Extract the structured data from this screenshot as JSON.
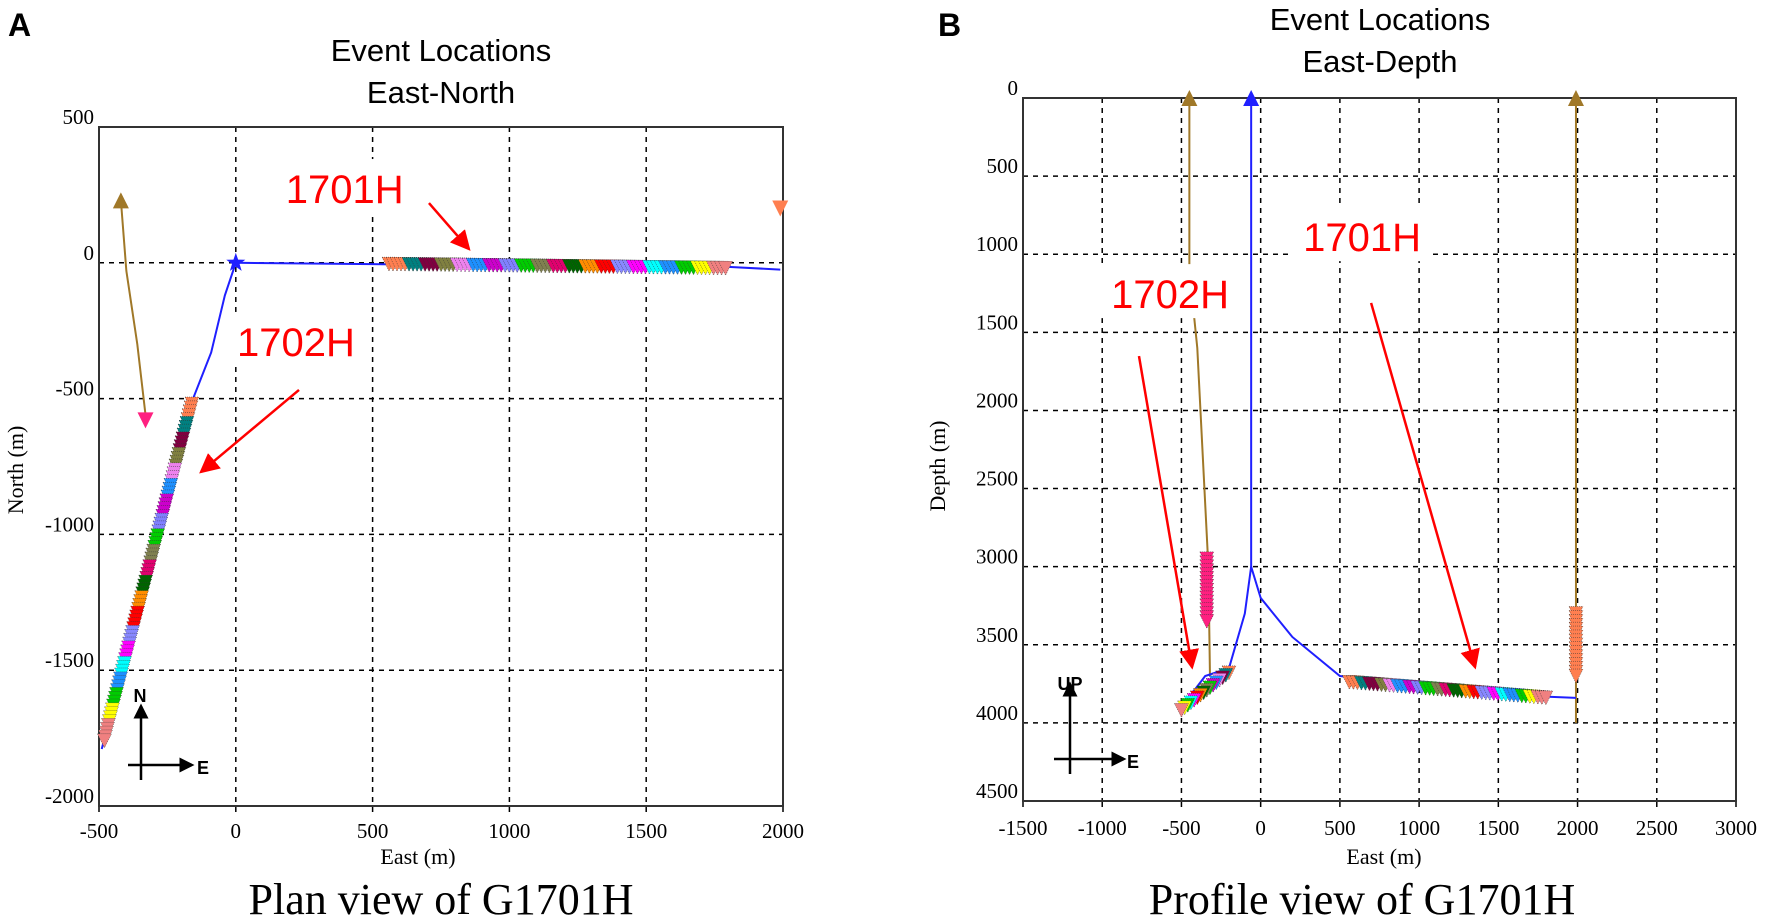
{
  "colors": {
    "grid": "#000000",
    "well_trajectory": "#1f1fff",
    "observation_well": "#a07828",
    "annotation": "#ff0000",
    "stage_palette": [
      "#ff7f50",
      "#008080",
      "#800040",
      "#808040",
      "#ee82ee",
      "#1e90ff",
      "#cc00cc",
      "#8080ff",
      "#00cc00",
      "#808050",
      "#e0006e",
      "#006400",
      "#ff8c00",
      "#ff0000",
      "#8888ff",
      "#ff00ff",
      "#00ffff",
      "#1e90ff",
      "#00cc00",
      "#ffff00",
      "#f08080"
    ]
  },
  "chart_data": [
    {
      "panel_label": "A",
      "type": "scatter",
      "title": [
        "Event Locations",
        "East-North"
      ],
      "xlabel": "East (m)",
      "ylabel": "North (m)",
      "caption": "Plan view of G1701H",
      "xlim": [
        -500,
        2000
      ],
      "ylim": [
        -2000,
        500
      ],
      "y_inverted": false,
      "xticks": [
        -500,
        0,
        500,
        1000,
        1500,
        2000
      ],
      "xtick_labels": [
        "-500",
        "0",
        "500",
        "1000",
        "1500",
        "2000"
      ],
      "yticks": [
        500,
        0,
        -500,
        -1000,
        -1500,
        -2000
      ],
      "ytick_labels": [
        "500",
        "0",
        "-500",
        "-1000",
        "-1500",
        "-2000"
      ],
      "grid": true,
      "compass": [
        "N",
        "E"
      ],
      "lines": [
        {
          "well": "observation",
          "points": [
            [
              -420,
              230
            ],
            [
              -400,
              -30
            ],
            [
              -360,
              -300
            ],
            [
              -330,
              -560
            ]
          ]
        },
        {
          "well": "1702H",
          "points": [
            [
              0,
              0
            ],
            [
              -40,
              -120
            ],
            [
              -90,
              -330
            ],
            [
              -160,
              -510
            ],
            [
              -490,
              -1790
            ]
          ]
        },
        {
          "well": "1701H",
          "points": [
            [
              0,
              0
            ],
            [
              500,
              -5
            ],
            [
              1000,
              -8
            ],
            [
              1800,
              -15
            ],
            [
              1990,
              -25
            ]
          ]
        }
      ],
      "markers": [
        {
          "shape": "triangle-up",
          "at": [
            -420,
            230
          ],
          "color": "#a07828"
        },
        {
          "shape": "triangle-down",
          "at": [
            -330,
            -580
          ],
          "color": "#ff2080"
        },
        {
          "shape": "star",
          "at": [
            0,
            0
          ],
          "color": "#1f1fff"
        },
        {
          "shape": "triangle-down",
          "at": [
            1990,
            200
          ],
          "color": "#ff7f50"
        }
      ],
      "event_groups": [
        {
          "well": "1701H",
          "from": [
            560,
            -5
          ],
          "to": [
            1790,
            -20
          ]
        },
        {
          "well": "1702H",
          "from": [
            -160,
            -520
          ],
          "to": [
            -480,
            -1760
          ]
        }
      ],
      "annotations": [
        {
          "text": "1701H",
          "at": [
            398,
            220
          ],
          "arrow_from": [
            706,
            220
          ],
          "arrow_to": [
            852,
            51
          ]
        },
        {
          "text": "1702H",
          "at": [
            220,
            -343
          ],
          "arrow_from": [
            231,
            -468
          ],
          "arrow_to": [
            -127,
            -770
          ]
        }
      ]
    },
    {
      "panel_label": "B",
      "type": "scatter",
      "title": [
        "Event Locations",
        "East-Depth"
      ],
      "xlabel": "East (m)",
      "ylabel": "Depth (m)",
      "caption": "Profile view of G1701H",
      "xlim": [
        -1500,
        3000
      ],
      "ylim": [
        0,
        4500
      ],
      "y_inverted": true,
      "xticks": [
        -1500,
        -1000,
        -500,
        0,
        500,
        1000,
        1500,
        2000,
        2500,
        3000
      ],
      "xtick_labels": [
        "-1500",
        "-1000",
        "-500",
        "0",
        "500",
        "1000",
        "1500",
        "2000",
        "2500",
        "3000"
      ],
      "yticks": [
        0,
        500,
        1000,
        1500,
        2000,
        2500,
        3000,
        3500,
        4000,
        4500
      ],
      "ytick_labels": [
        "0",
        "500",
        "1000",
        "1500",
        "2000",
        "2500",
        "3000",
        "3500",
        "4000",
        "4500"
      ],
      "grid": true,
      "compass": [
        "UP",
        "E"
      ],
      "lines": [
        {
          "well": "observation",
          "points": [
            [
              -450,
              0
            ],
            [
              -450,
              1100
            ],
            [
              -400,
              1600
            ],
            [
              -330,
              3000
            ],
            [
              -320,
              3700
            ]
          ]
        },
        {
          "well": "observation",
          "points": [
            [
              1990,
              0
            ],
            [
              1990,
              4000
            ]
          ]
        },
        {
          "well": "1701H",
          "points": [
            [
              -60,
              0
            ],
            [
              -60,
              3000
            ],
            [
              0,
              3200
            ],
            [
              200,
              3450
            ],
            [
              500,
              3700
            ],
            [
              1000,
              3760
            ],
            [
              1500,
              3820
            ],
            [
              1990,
              3840
            ]
          ]
        },
        {
          "well": "1702H",
          "points": [
            [
              -60,
              3000
            ],
            [
              -100,
              3300
            ],
            [
              -200,
              3650
            ],
            [
              -350,
              3700
            ],
            [
              -500,
              3900
            ]
          ]
        }
      ],
      "markers": [
        {
          "shape": "triangle-up",
          "at": [
            -450,
            0
          ],
          "color": "#a07828"
        },
        {
          "shape": "triangle-up",
          "at": [
            -60,
            0
          ],
          "color": "#1f1fff"
        },
        {
          "shape": "triangle-up",
          "at": [
            1990,
            0
          ],
          "color": "#a07828"
        }
      ],
      "event_groups": [
        {
          "well": "observation-1",
          "from": [
            -340,
            2950
          ],
          "to": [
            -340,
            3350
          ],
          "color": "#ff2080"
        },
        {
          "well": "observation-2",
          "from": [
            1990,
            3300
          ],
          "to": [
            1990,
            3700
          ],
          "color": "#ff7f50"
        },
        {
          "well": "1701H",
          "from": [
            560,
            3740
          ],
          "to": [
            1800,
            3840
          ]
        },
        {
          "well": "1702H",
          "from": [
            -200,
            3680
          ],
          "to": [
            -500,
            3920
          ]
        }
      ],
      "annotations": [
        {
          "text": "1701H",
          "at": [
            640,
            980
          ],
          "arrow_from": [
            697,
            1312
          ],
          "arrow_to": [
            1353,
            3643
          ]
        },
        {
          "text": "1702H",
          "at": [
            -572,
            1345
          ],
          "arrow_from": [
            -768,
            1652
          ],
          "arrow_to": [
            -433,
            3643
          ]
        }
      ]
    }
  ]
}
